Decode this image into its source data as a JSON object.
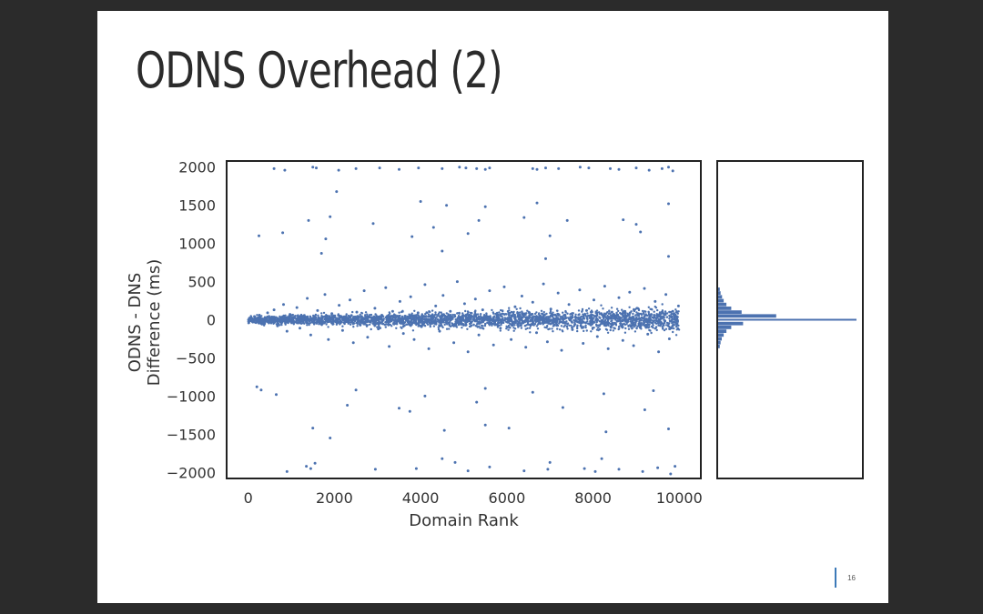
{
  "slide": {
    "title": "ODNS Overhead (2)",
    "page_number": "16"
  },
  "colors": {
    "background": "#2b2b2b",
    "slide": "#ffffff",
    "points": "#4c72b0",
    "accent_bar": "#3d7ab8"
  },
  "chart_data": {
    "type": "scatter",
    "title": "",
    "xlabel": "Domain Rank",
    "ylabel_lines": [
      "ODNS - DNS",
      "Difference (ms)"
    ],
    "xlim": [
      -500,
      10500
    ],
    "ylim": [
      -2080,
      2080
    ],
    "xticks": [
      0,
      2000,
      4000,
      6000,
      8000,
      10000
    ],
    "xtick_labels": [
      "0",
      "2000",
      "4000",
      "6000",
      "8000",
      "10000"
    ],
    "yticks": [
      2000,
      1500,
      1000,
      500,
      0,
      -500,
      -1000,
      -1500,
      -2000
    ],
    "ytick_labels": [
      "2000",
      "1500",
      "1000",
      "500",
      "0",
      "−500",
      "−1000",
      "−1500",
      "−2000"
    ],
    "grid": false,
    "marginal": "histogram of y values (right panel)",
    "series": [
      {
        "values": [
          [
            30,
            20
          ],
          [
            80,
            -10
          ],
          [
            150,
            40
          ],
          [
            200,
            -30
          ],
          [
            260,
            60
          ],
          [
            310,
            10
          ],
          [
            380,
            -50
          ],
          [
            450,
            90
          ],
          [
            520,
            -20
          ],
          [
            600,
            130
          ],
          [
            680,
            -80
          ],
          [
            750,
            30
          ],
          [
            820,
            200
          ],
          [
            900,
            -150
          ],
          [
            970,
            70
          ],
          [
            1050,
            -40
          ],
          [
            1130,
            160
          ],
          [
            1200,
            -110
          ],
          [
            1290,
            50
          ],
          [
            1370,
            280
          ],
          [
            1450,
            -200
          ],
          [
            1530,
            20
          ],
          [
            1610,
            120
          ],
          [
            1700,
            -60
          ],
          [
            1780,
            330
          ],
          [
            1860,
            -260
          ],
          [
            1940,
            80
          ],
          [
            2020,
            -20
          ],
          [
            2110,
            190
          ],
          [
            2190,
            -140
          ],
          [
            2270,
            40
          ],
          [
            2360,
            260
          ],
          [
            2440,
            -300
          ],
          [
            2520,
            100
          ],
          [
            2600,
            -70
          ],
          [
            2690,
            380
          ],
          [
            2770,
            -230
          ],
          [
            2850,
            30
          ],
          [
            2940,
            150
          ],
          [
            3020,
            -120
          ],
          [
            3100,
            60
          ],
          [
            3190,
            420
          ],
          [
            3270,
            -350
          ],
          [
            3350,
            110
          ],
          [
            3440,
            -40
          ],
          [
            3520,
            240
          ],
          [
            3600,
            -180
          ],
          [
            3690,
            20
          ],
          [
            3770,
            300
          ],
          [
            3850,
            -260
          ],
          [
            3940,
            90
          ],
          [
            4020,
            -90
          ],
          [
            4100,
            460
          ],
          [
            4190,
            -380
          ],
          [
            4270,
            50
          ],
          [
            4350,
            180
          ],
          [
            4440,
            -150
          ],
          [
            4520,
            320
          ],
          [
            4600,
            -30
          ],
          [
            4690,
            110
          ],
          [
            4770,
            -300
          ],
          [
            4850,
            500
          ],
          [
            4940,
            -60
          ],
          [
            5020,
            210
          ],
          [
            5100,
            -420
          ],
          [
            5190,
            40
          ],
          [
            5270,
            270
          ],
          [
            5350,
            -200
          ],
          [
            5440,
            130
          ],
          [
            5520,
            10
          ],
          [
            5600,
            380
          ],
          [
            5690,
            -330
          ],
          [
            5770,
            80
          ],
          [
            5850,
            -110
          ],
          [
            5940,
            430
          ],
          [
            6020,
            20
          ],
          [
            6100,
            -260
          ],
          [
            6190,
            170
          ],
          [
            6270,
            -40
          ],
          [
            6350,
            310
          ],
          [
            6440,
            -360
          ],
          [
            6520,
            90
          ],
          [
            6600,
            230
          ],
          [
            6690,
            -170
          ],
          [
            6770,
            50
          ],
          [
            6850,
            470
          ],
          [
            6940,
            -290
          ],
          [
            7020,
            140
          ],
          [
            7100,
            -70
          ],
          [
            7190,
            350
          ],
          [
            7270,
            -400
          ],
          [
            7350,
            60
          ],
          [
            7440,
            200
          ],
          [
            7520,
            -130
          ],
          [
            7600,
            30
          ],
          [
            7690,
            390
          ],
          [
            7770,
            -310
          ],
          [
            7850,
            120
          ],
          [
            7940,
            -20
          ],
          [
            8020,
            260
          ],
          [
            8100,
            -220
          ],
          [
            8190,
            80
          ],
          [
            8270,
            440
          ],
          [
            8350,
            -380
          ],
          [
            8440,
            100
          ],
          [
            8520,
            -50
          ],
          [
            8600,
            290
          ],
          [
            8690,
            -270
          ],
          [
            8770,
            40
          ],
          [
            8850,
            360
          ],
          [
            8940,
            -340
          ],
          [
            9020,
            150
          ],
          [
            9100,
            -90
          ],
          [
            9190,
            410
          ],
          [
            9270,
            -190
          ],
          [
            9350,
            70
          ],
          [
            9440,
            240
          ],
          [
            9520,
            -420
          ],
          [
            9600,
            20
          ],
          [
            9690,
            330
          ],
          [
            9770,
            -250
          ],
          [
            9850,
            110
          ],
          [
            9940,
            -60
          ],
          [
            9980,
            180
          ],
          [
            600,
            1980
          ],
          [
            850,
            1960
          ],
          [
            1500,
            2000
          ],
          [
            1580,
            1990
          ],
          [
            2100,
            1960
          ],
          [
            2500,
            1980
          ],
          [
            3050,
            1990
          ],
          [
            3500,
            1970
          ],
          [
            3950,
            1990
          ],
          [
            4500,
            1980
          ],
          [
            4900,
            2000
          ],
          [
            5050,
            1990
          ],
          [
            5300,
            1980
          ],
          [
            5500,
            1970
          ],
          [
            5600,
            1990
          ],
          [
            6600,
            1980
          ],
          [
            6700,
            1970
          ],
          [
            6900,
            1990
          ],
          [
            7200,
            1980
          ],
          [
            7700,
            2000
          ],
          [
            7900,
            1990
          ],
          [
            8400,
            1980
          ],
          [
            8600,
            1970
          ],
          [
            9000,
            1990
          ],
          [
            9300,
            1960
          ],
          [
            9600,
            1980
          ],
          [
            9750,
            2000
          ],
          [
            9850,
            1950
          ],
          [
            2050,
            1680
          ],
          [
            4000,
            1550
          ],
          [
            4600,
            1500
          ],
          [
            5500,
            1480
          ],
          [
            6700,
            1530
          ],
          [
            9750,
            1520
          ],
          [
            1400,
            1300
          ],
          [
            1900,
            1350
          ],
          [
            2900,
            1260
          ],
          [
            4300,
            1210
          ],
          [
            5350,
            1300
          ],
          [
            6400,
            1340
          ],
          [
            7400,
            1300
          ],
          [
            8700,
            1310
          ],
          [
            9000,
            1250
          ],
          [
            250,
            1100
          ],
          [
            800,
            1140
          ],
          [
            1800,
            1060
          ],
          [
            3800,
            1090
          ],
          [
            5100,
            1130
          ],
          [
            7000,
            1100
          ],
          [
            9100,
            1150
          ],
          [
            1700,
            870
          ],
          [
            4500,
            900
          ],
          [
            6900,
            800
          ],
          [
            9750,
            830
          ],
          [
            200,
            -880
          ],
          [
            300,
            -920
          ],
          [
            650,
            -980
          ],
          [
            2500,
            -920
          ],
          [
            4100,
            -1000
          ],
          [
            5500,
            -900
          ],
          [
            6600,
            -950
          ],
          [
            8250,
            -970
          ],
          [
            9400,
            -930
          ],
          [
            2300,
            -1120
          ],
          [
            3500,
            -1160
          ],
          [
            3750,
            -1200
          ],
          [
            5300,
            -1080
          ],
          [
            7300,
            -1150
          ],
          [
            9200,
            -1180
          ],
          [
            1500,
            -1420
          ],
          [
            1900,
            -1550
          ],
          [
            4550,
            -1450
          ],
          [
            5500,
            -1380
          ],
          [
            6050,
            -1420
          ],
          [
            8300,
            -1470
          ],
          [
            9750,
            -1430
          ],
          [
            900,
            -1990
          ],
          [
            1350,
            -1920
          ],
          [
            1450,
            -1950
          ],
          [
            1550,
            -1880
          ],
          [
            2950,
            -1960
          ],
          [
            3900,
            -1950
          ],
          [
            4500,
            -1820
          ],
          [
            4800,
            -1870
          ],
          [
            5100,
            -1980
          ],
          [
            5600,
            -1930
          ],
          [
            6400,
            -1980
          ],
          [
            6950,
            -1960
          ],
          [
            7000,
            -1870
          ],
          [
            7800,
            -1950
          ],
          [
            8050,
            -1990
          ],
          [
            8200,
            -1820
          ],
          [
            8600,
            -1960
          ],
          [
            9150,
            -1990
          ],
          [
            9500,
            -1940
          ],
          [
            9800,
            -2020
          ],
          [
            9900,
            -1920
          ]
        ]
      }
    ],
    "histogram": {
      "bin_centers": [
        -350,
        -300,
        -250,
        -200,
        -150,
        -100,
        -50,
        0,
        50,
        100,
        150,
        200,
        250,
        300,
        350,
        400
      ],
      "counts": [
        12,
        18,
        26,
        40,
        60,
        95,
        180,
        1000,
        420,
        170,
        95,
        60,
        40,
        28,
        18,
        12
      ]
    }
  }
}
